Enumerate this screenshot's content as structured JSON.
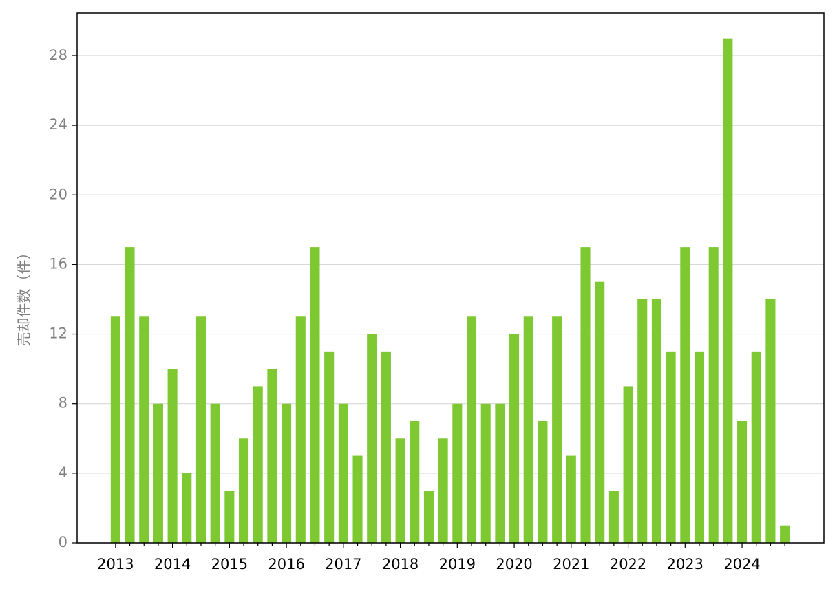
{
  "chart_data": {
    "type": "bar",
    "y_label": "売却件数（件）",
    "categories": [
      "2013",
      null,
      null,
      null,
      "2014",
      null,
      null,
      null,
      "2015",
      null,
      null,
      null,
      "2016",
      null,
      null,
      null,
      "2017",
      null,
      null,
      null,
      "2018",
      null,
      null,
      null,
      "2019",
      null,
      null,
      null,
      "2020",
      null,
      null,
      null,
      "2021",
      null,
      null,
      null,
      "2022",
      null,
      null,
      null,
      "2023",
      null,
      null,
      null,
      "2024",
      null,
      null,
      null
    ],
    "values": [
      13,
      17,
      13,
      8,
      10,
      4,
      13,
      8,
      3,
      6,
      9,
      10,
      8,
      13,
      17,
      11,
      8,
      5,
      12,
      11,
      6,
      7,
      3,
      6,
      8,
      13,
      8,
      8,
      12,
      13,
      7,
      13,
      5,
      17,
      15,
      3,
      9,
      14,
      14,
      11,
      17,
      11,
      17,
      29,
      7,
      11,
      14,
      1
    ],
    "color": "#7ec932",
    "ylim": [
      0,
      30.45
    ],
    "yticks": [
      0,
      4,
      8,
      12,
      16,
      20,
      24,
      28
    ],
    "grid": true
  }
}
